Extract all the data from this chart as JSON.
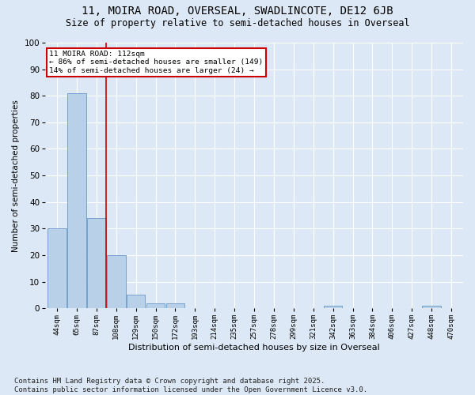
{
  "title1": "11, MOIRA ROAD, OVERSEAL, SWADLINCOTE, DE12 6JB",
  "title2": "Size of property relative to semi-detached houses in Overseal",
  "xlabel": "Distribution of semi-detached houses by size in Overseal",
  "ylabel": "Number of semi-detached properties",
  "categories": [
    "44sqm",
    "65sqm",
    "87sqm",
    "108sqm",
    "129sqm",
    "150sqm",
    "172sqm",
    "193sqm",
    "214sqm",
    "235sqm",
    "257sqm",
    "278sqm",
    "299sqm",
    "321sqm",
    "342sqm",
    "363sqm",
    "384sqm",
    "406sqm",
    "427sqm",
    "448sqm",
    "470sqm"
  ],
  "values": [
    30,
    81,
    34,
    20,
    5,
    2,
    2,
    0,
    0,
    0,
    0,
    0,
    0,
    0,
    1,
    0,
    0,
    0,
    0,
    1,
    0
  ],
  "bar_color": "#b8d0e8",
  "bar_edge_color": "#6898c8",
  "vline_color": "#cc0000",
  "annotation_title": "11 MOIRA ROAD: 112sqm",
  "annotation_line1": "← 86% of semi-detached houses are smaller (149)",
  "annotation_line2": "14% of semi-detached houses are larger (24) →",
  "annotation_box_color": "#cc0000",
  "ylim": [
    0,
    100
  ],
  "yticks": [
    0,
    10,
    20,
    30,
    40,
    50,
    60,
    70,
    80,
    90,
    100
  ],
  "bg_color": "#dce8f5",
  "grid_color": "#ffffff",
  "footnote": "Contains HM Land Registry data © Crown copyright and database right 2025.\nContains public sector information licensed under the Open Government Licence v3.0.",
  "title_fontsize": 10,
  "subtitle_fontsize": 8.5,
  "footnote_fontsize": 6.5
}
